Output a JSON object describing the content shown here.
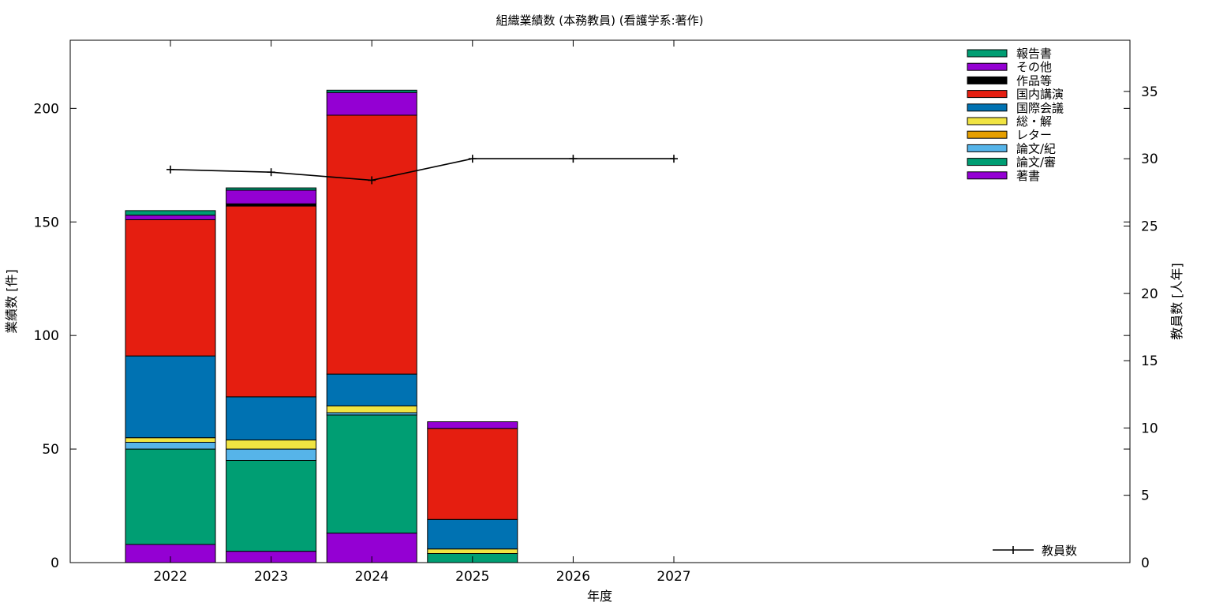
{
  "chart_data": {
    "type": "bar",
    "stacked": true,
    "title": "組織業績数 (本務教員) (看護学系:著作)",
    "xlabel": "年度",
    "ylabel": "業績数 [件]",
    "y2label": "教員数 [人年]",
    "categories": [
      "2022",
      "2023",
      "2024",
      "2025",
      "2026",
      "2027"
    ],
    "ylim": [
      0,
      230
    ],
    "yticks": [
      0,
      50,
      100,
      150,
      200
    ],
    "y2lim": [
      0,
      38.8
    ],
    "y2ticks": [
      0,
      5,
      10,
      15,
      20,
      25,
      30,
      35
    ],
    "series": [
      {
        "name": "著書",
        "color": "#9400d3",
        "values": [
          8,
          5,
          13,
          0,
          0,
          0
        ]
      },
      {
        "name": "論文/審",
        "color": "#009e73",
        "values": [
          42,
          40,
          52,
          4,
          0,
          0
        ]
      },
      {
        "name": "論文/紀",
        "color": "#56b4e9",
        "values": [
          3,
          5,
          1,
          0,
          0,
          0
        ]
      },
      {
        "name": "レター",
        "color": "#e69f00",
        "values": [
          0,
          0,
          0,
          0,
          0,
          0
        ]
      },
      {
        "name": "総・解",
        "color": "#f0e442",
        "values": [
          2,
          4,
          3,
          2,
          0,
          0
        ]
      },
      {
        "name": "国際会議",
        "color": "#0072b2",
        "values": [
          36,
          19,
          14,
          13,
          0,
          0
        ]
      },
      {
        "name": "国内講演",
        "color": "#e51e10",
        "values": [
          60,
          84,
          114,
          40,
          0,
          0
        ]
      },
      {
        "name": "作品等",
        "color": "#000000",
        "values": [
          0,
          1,
          0,
          0,
          0,
          0
        ]
      },
      {
        "name": "その他",
        "color": "#9400d3",
        "values": [
          2,
          6,
          10,
          3,
          0,
          0
        ]
      },
      {
        "name": "報告書",
        "color": "#009e73",
        "values": [
          2,
          1,
          1,
          0,
          0,
          0
        ]
      }
    ],
    "line_series": {
      "name": "教員数",
      "axis": "y2",
      "color": "#000000",
      "values": [
        29.2,
        29.0,
        28.4,
        30.0,
        30.0,
        30.0
      ]
    },
    "legend_position": "top-right"
  }
}
